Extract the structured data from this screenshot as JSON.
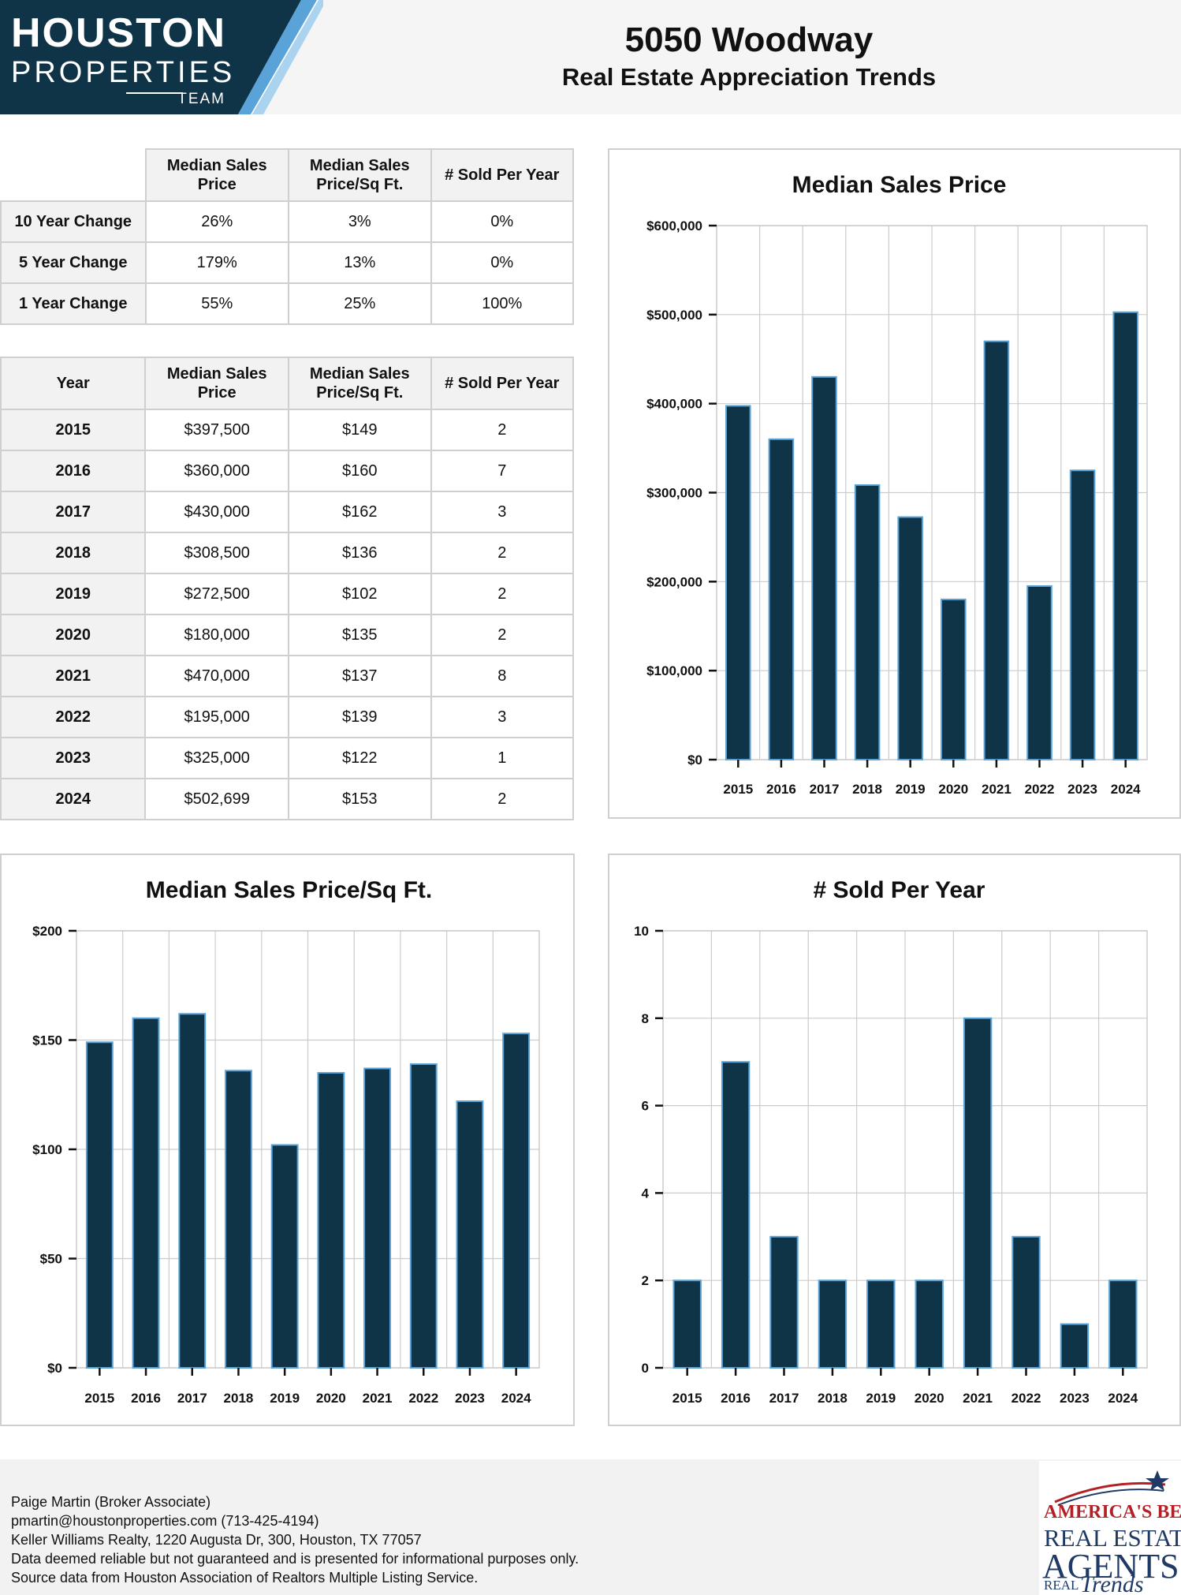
{
  "header": {
    "logo": {
      "line1": "HOUSTON",
      "line2": "PROPERTIES",
      "line3": "TEAM"
    },
    "title": "5050 Woodway",
    "subtitle": "Real Estate Appreciation Trends",
    "colors": {
      "logo_navy": "#0f3347",
      "accent_light_blue": "#a9d3ee",
      "accent_blue": "#5aa3d8"
    }
  },
  "change_table": {
    "columns": [
      "",
      "Median Sales Price",
      "Median Sales Price/Sq Ft.",
      "# Sold Per Year"
    ],
    "rows": [
      {
        "label": "10 Year Change",
        "values": [
          "26%",
          "3%",
          "0%"
        ]
      },
      {
        "label": "5 Year Change",
        "values": [
          "179%",
          "13%",
          "0%"
        ]
      },
      {
        "label": "1 Year Change",
        "values": [
          "55%",
          "25%",
          "100%"
        ]
      }
    ]
  },
  "year_table": {
    "columns": [
      "Year",
      "Median Sales Price",
      "Median Sales Price/Sq Ft.",
      "# Sold Per Year"
    ],
    "rows": [
      {
        "year": "2015",
        "price": "$397,500",
        "sqft": "$149",
        "sold": "2"
      },
      {
        "year": "2016",
        "price": "$360,000",
        "sqft": "$160",
        "sold": "7"
      },
      {
        "year": "2017",
        "price": "$430,000",
        "sqft": "$162",
        "sold": "3"
      },
      {
        "year": "2018",
        "price": "$308,500",
        "sqft": "$136",
        "sold": "2"
      },
      {
        "year": "2019",
        "price": "$272,500",
        "sqft": "$102",
        "sold": "2"
      },
      {
        "year": "2020",
        "price": "$180,000",
        "sqft": "$135",
        "sold": "2"
      },
      {
        "year": "2021",
        "price": "$470,000",
        "sqft": "$137",
        "sold": "8"
      },
      {
        "year": "2022",
        "price": "$195,000",
        "sqft": "$139",
        "sold": "3"
      },
      {
        "year": "2023",
        "price": "$325,000",
        "sqft": "$122",
        "sold": "1"
      },
      {
        "year": "2024",
        "price": "$502,699",
        "sqft": "$153",
        "sold": "2"
      }
    ]
  },
  "chart_data": [
    {
      "id": "price",
      "type": "bar",
      "title": "Median Sales Price",
      "categories": [
        "2015",
        "2016",
        "2017",
        "2018",
        "2019",
        "2020",
        "2021",
        "2022",
        "2023",
        "2024"
      ],
      "values": [
        397500,
        360000,
        430000,
        308500,
        272500,
        180000,
        470000,
        195000,
        325000,
        502699
      ],
      "ylim": [
        0,
        600000
      ],
      "yticks": [
        0,
        100000,
        200000,
        300000,
        400000,
        500000,
        600000
      ],
      "ytick_labels": [
        "$0",
        "$100,000",
        "$200,000",
        "$300,000",
        "$400,000",
        "$500,000",
        "$600,000"
      ],
      "grid": true,
      "bar_color": "#0f3347",
      "bar_edge_color": "#5aa3d8"
    },
    {
      "id": "sqft",
      "type": "bar",
      "title": "Median Sales Price/Sq Ft.",
      "categories": [
        "2015",
        "2016",
        "2017",
        "2018",
        "2019",
        "2020",
        "2021",
        "2022",
        "2023",
        "2024"
      ],
      "values": [
        149,
        160,
        162,
        136,
        102,
        135,
        137,
        139,
        122,
        153
      ],
      "ylim": [
        0,
        200
      ],
      "yticks": [
        0,
        50,
        100,
        150,
        200
      ],
      "ytick_labels": [
        "$0",
        "$50",
        "$100",
        "$150",
        "$200"
      ],
      "grid": true,
      "bar_color": "#0f3347",
      "bar_edge_color": "#5aa3d8"
    },
    {
      "id": "sold",
      "type": "bar",
      "title": "# Sold Per Year",
      "categories": [
        "2015",
        "2016",
        "2017",
        "2018",
        "2019",
        "2020",
        "2021",
        "2022",
        "2023",
        "2024"
      ],
      "values": [
        2,
        7,
        3,
        2,
        2,
        2,
        8,
        3,
        1,
        2
      ],
      "ylim": [
        0,
        10
      ],
      "yticks": [
        0,
        2,
        4,
        6,
        8,
        10
      ],
      "ytick_labels": [
        "0",
        "2",
        "4",
        "6",
        "8",
        "10"
      ],
      "grid": true,
      "bar_color": "#0f3347",
      "bar_edge_color": "#5aa3d8"
    }
  ],
  "footer": {
    "lines": [
      "Paige Martin (Broker Associate)",
      "pmartin@houstonproperties.com (713-425-4194)",
      "Keller Williams Realty, 1220 Augusta Dr, 300, Houston, TX 77057",
      "Data deemed reliable but not guaranteed and is presented for informational purposes only.",
      "Source data from Houston Association of Realtors Multiple Listing Service."
    ],
    "badge": {
      "line1": "AMERICA'S BEST",
      "line2": "REAL ESTATE",
      "line3": "AGENTS",
      "line4": "REAL",
      "line5": "Trends",
      "star_icon": "star-icon"
    }
  }
}
